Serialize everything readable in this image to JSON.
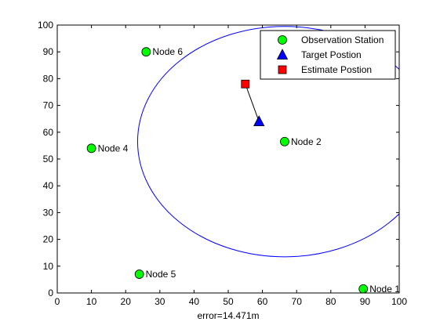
{
  "chart_data": {
    "type": "scatter",
    "title": "",
    "xlabel": "error=14.471m",
    "ylabel": "",
    "xlim": [
      0,
      100
    ],
    "ylim": [
      0,
      100
    ],
    "xticks": [
      0,
      10,
      20,
      30,
      40,
      50,
      60,
      70,
      80,
      90,
      100
    ],
    "yticks": [
      0,
      10,
      20,
      30,
      40,
      50,
      60,
      70,
      80,
      90,
      100
    ],
    "grid": false,
    "legend_position": "top-right",
    "colors": {
      "station": "#00ff00",
      "target": "#0000ff",
      "estimate": "#ff0000",
      "circle": "#0000ff",
      "error_line": "#000000"
    },
    "series": [
      {
        "name": "Observation Station",
        "marker": "circle",
        "points": [
          {
            "label": "Node 1",
            "x": 89.5,
            "y": 1.5
          },
          {
            "label": "Node 2",
            "x": 66.5,
            "y": 56.5
          },
          {
            "label": "Node 4",
            "x": 10,
            "y": 54
          },
          {
            "label": "Node 5",
            "x": 24,
            "y": 7
          },
          {
            "label": "Node 6",
            "x": 26,
            "y": 90
          }
        ]
      },
      {
        "name": "Target Postion",
        "marker": "triangle",
        "points": [
          {
            "x": 59,
            "y": 64
          }
        ]
      },
      {
        "name": "Estimate Postion",
        "marker": "square",
        "points": [
          {
            "x": 55,
            "y": 78
          }
        ]
      }
    ],
    "annotations": [
      {
        "type": "circle",
        "center": [
          66.5,
          56.5
        ],
        "radius": 43
      },
      {
        "type": "line",
        "from": [
          55,
          78
        ],
        "to": [
          59,
          64
        ]
      }
    ]
  }
}
